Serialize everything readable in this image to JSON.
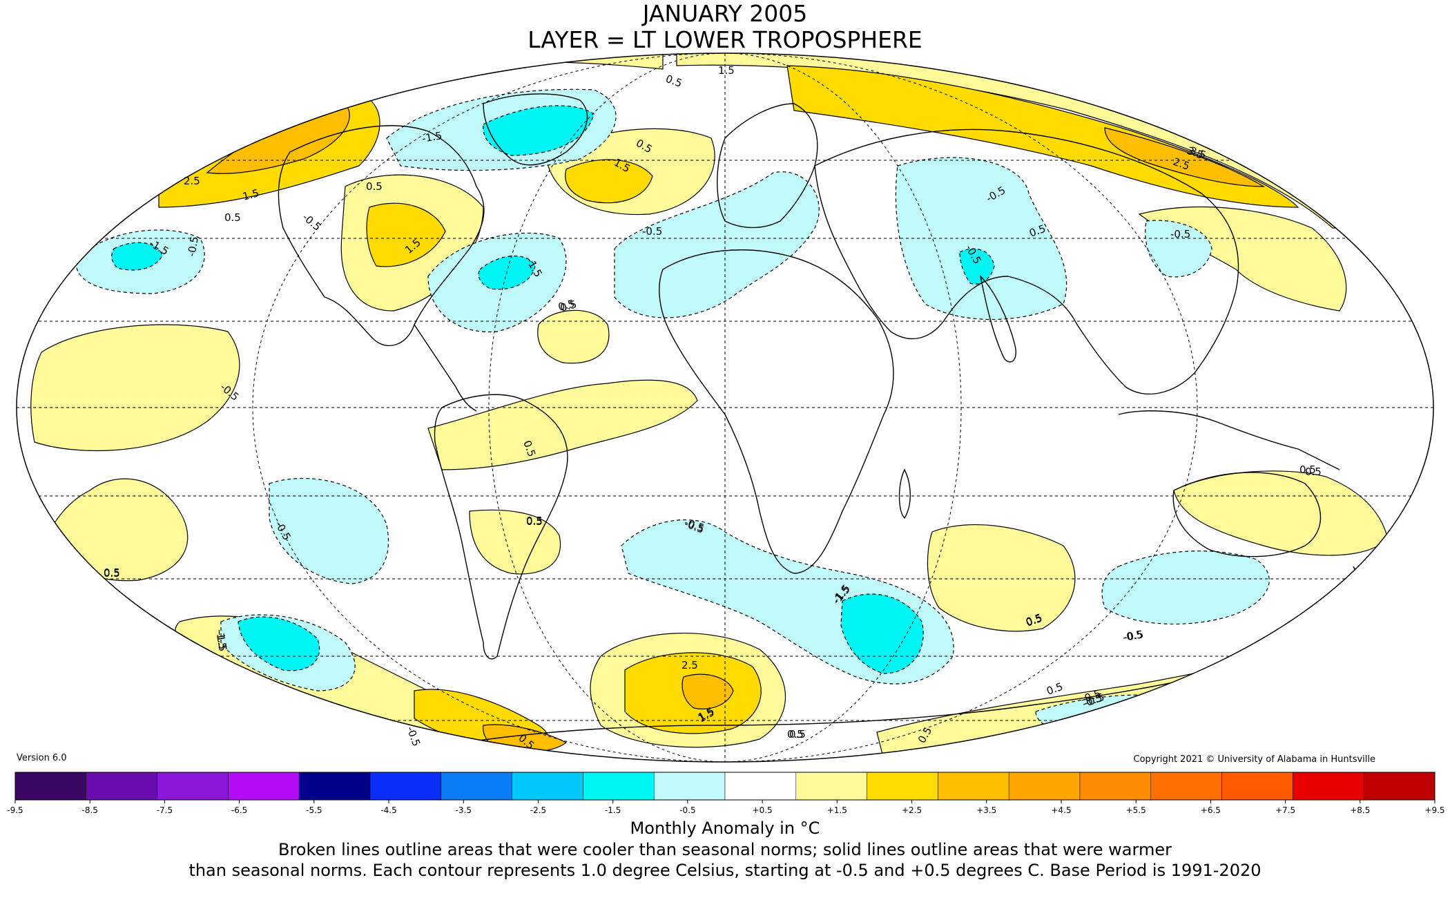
{
  "title": {
    "line1": "JANUARY 2005",
    "line2": "LAYER = LT LOWER TROPOSPHERE"
  },
  "version": "Version 6.0",
  "copyright": "Copyright 2021 © University of Alabama in Huntsville",
  "colorbar": {
    "label": "Monthly Anomaly in °C",
    "ticks": [
      "-9.5",
      "-8.5",
      "-7.5",
      "-6.5",
      "-5.5",
      "-4.5",
      "-3.5",
      "-2.5",
      "-1.5",
      "-0.5",
      "+0.5",
      "+1.5",
      "+2.5",
      "+3.5",
      "+4.5",
      "+5.5",
      "+6.5",
      "+7.5",
      "+8.5",
      "+9.5"
    ],
    "colors": [
      "#3b0764",
      "#6a0dad",
      "#8b18d8",
      "#b10cf5",
      "#00008b",
      "#0a2dfa",
      "#0a7cf5",
      "#00c8fa",
      "#00f5f5",
      "#c0fafa",
      "#ffffff",
      "#fffa9a",
      "#ffdb00",
      "#ffbe00",
      "#ffa500",
      "#ff8c00",
      "#ff7000",
      "#ff5a00",
      "#e60000",
      "#c00000"
    ]
  },
  "notes": {
    "line1": "Broken lines outline areas that were cooler than seasonal norms; solid lines outline areas that were warmer",
    "line2": "than seasonal norms. Each contour represents 1.0 degree Celsius, starting at -0.5 and +0.5 degrees C. Base Period is 1991-2020"
  },
  "map": {
    "projection": "Mollweide",
    "contour_labels": [
      "1.5",
      "0.5",
      "-1.5",
      "0.5",
      "1.5",
      "2.5",
      "1.5",
      "0.5",
      "3.5",
      "-0.5",
      "-1.5",
      "-0.5",
      "1.5",
      "0.5",
      "-1.5",
      "-0.5",
      "0.5",
      "-0.5",
      "-0.5",
      "-0.5",
      "0.5",
      "-0.5",
      "3.5",
      "2.5",
      "0.5",
      "-0.5",
      "0.5",
      "0.5",
      "-0.5",
      "0.5",
      "-0.5",
      "0.5",
      "-1.5",
      "2.5",
      "1.5",
      "0.5",
      "-0.5",
      "0.5",
      "-0.5",
      "-0.5",
      "0.5",
      "-1.5",
      "0.5",
      "-0.5",
      "0.5",
      "0.5",
      "-0.5",
      "0.5",
      "-1.5",
      "-1.5",
      "1.5",
      "0.5",
      "-0.5",
      "0.5",
      "0.5"
    ],
    "colors": {
      "warm_05": "#fffa9a",
      "warm_15": "#ffdb00",
      "warm_25": "#ffbe00",
      "warm_35": "#ffa500",
      "cool_05": "#c0fafa",
      "cool_15": "#00f5f5",
      "cool_25": "#00c8fa"
    }
  }
}
